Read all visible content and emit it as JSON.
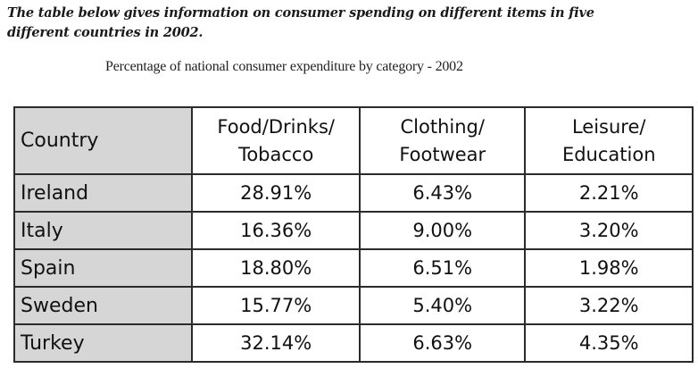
{
  "intro": {
    "line1": "The table below gives information on consumer spending on different items in five",
    "line2": "different countries in 2002."
  },
  "caption": "Percentage of national consumer expenditure by category - 2002",
  "chart_data": {
    "type": "table",
    "title": "Percentage of national consumer expenditure by category - 2002",
    "columns": [
      {
        "line1": "Country",
        "line2": ""
      },
      {
        "line1": "Food/Drinks/",
        "line2": "Tobacco"
      },
      {
        "line1": "Clothing/",
        "line2": "Footwear"
      },
      {
        "line1": "Leisure/",
        "line2": "Education"
      }
    ],
    "rows": [
      {
        "country": "Ireland",
        "food": "28.91%",
        "clothing": "6.43%",
        "leisure": "2.21%"
      },
      {
        "country": "Italy",
        "food": "16.36%",
        "clothing": "9.00%",
        "leisure": "3.20%"
      },
      {
        "country": "Spain",
        "food": "18.80%",
        "clothing": "6.51%",
        "leisure": "1.98%"
      },
      {
        "country": "Sweden",
        "food": "15.77%",
        "clothing": "5.40%",
        "leisure": "3.22%"
      },
      {
        "country": "Turkey",
        "food": "32.14%",
        "clothing": "6.63%",
        "leisure": "4.35%"
      }
    ]
  },
  "colors": {
    "header_shade": "#d6d6d6",
    "border": "#2b2b2b",
    "text": "#111111"
  }
}
